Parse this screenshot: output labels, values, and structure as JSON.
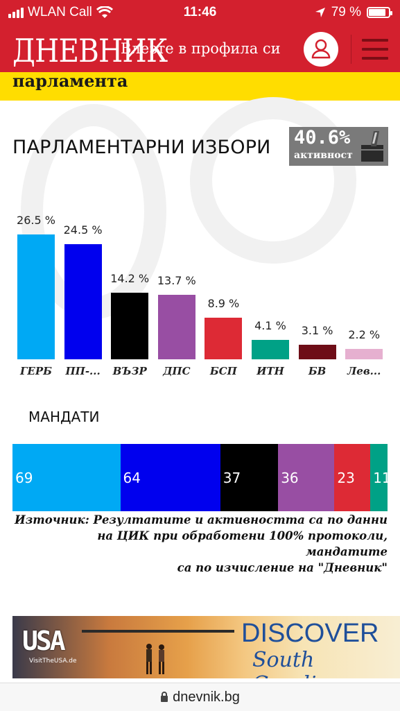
{
  "status": {
    "carrier": "WLAN Call",
    "time": "11:46",
    "battery": "79 %"
  },
  "header": {
    "logo": "ДНЕВНИК",
    "login_text": "Влезте в профила си"
  },
  "subheader": {
    "text": "парламента"
  },
  "chart_title": "ПАРЛАМЕНТАРНИ ИЗБОРИ",
  "turnout": {
    "value": "40.6%",
    "label": "активност"
  },
  "chart_data": {
    "type": "bar",
    "categories": [
      "ГЕРБ",
      "ПП-...",
      "ВЪЗР",
      "ДПС",
      "БСП",
      "ИТН",
      "БВ",
      "Лев..."
    ],
    "values": [
      26.5,
      24.5,
      14.2,
      13.7,
      8.9,
      4.1,
      3.1,
      2.2
    ],
    "value_labels": [
      "26.5 %",
      "24.5 %",
      "14.2 %",
      "13.7 %",
      "8.9 %",
      "4.1 %",
      "3.1 %",
      "2.2 %"
    ],
    "colors": [
      "#00a9f4",
      "#0000ee",
      "#000000",
      "#984ea3",
      "#dd2a35",
      "#00a186",
      "#6e0d17",
      "#e6b0d0"
    ],
    "ylim": [
      0,
      26.5
    ]
  },
  "mandates": {
    "title": "МАНДАТИ",
    "values": [
      69,
      64,
      37,
      36,
      23,
      11
    ],
    "labels": [
      "69",
      "64",
      "37",
      "36",
      "23",
      "11"
    ],
    "colors": [
      "#00a9f4",
      "#0000ee",
      "#000000",
      "#984ea3",
      "#dd2a35",
      "#00a186"
    ]
  },
  "source": {
    "line1": "Източник: Резултатите и активността са по данни",
    "line2": "на ЦИК при обработени 100% протоколи, мандатите",
    "line3": "са по изчисление на \"Дневник\""
  },
  "ad": {
    "usa": "USA",
    "visit": "VisitTheUSA.de",
    "discover": "DISCOVER",
    "region": "South Carolina"
  },
  "url": "dnevnik.bg"
}
